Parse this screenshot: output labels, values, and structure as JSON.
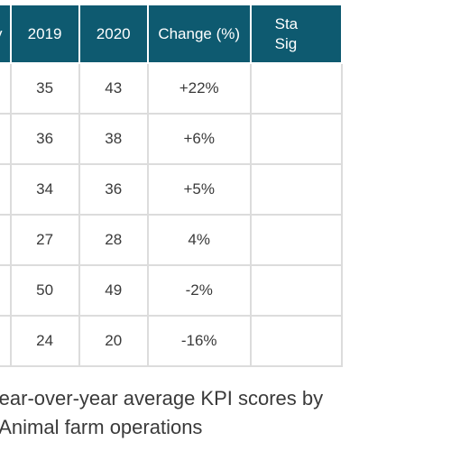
{
  "table": {
    "headers": {
      "label": "y",
      "year_2019": "2019",
      "year_2020": "2020",
      "change": "Change (%)",
      "significance_line1": "Sta",
      "significance_line2": "Sig"
    },
    "rows": [
      {
        "v2019": "35",
        "v2020": "43",
        "change": "+22%"
      },
      {
        "v2019": "36",
        "v2020": "38",
        "change": "+6%"
      },
      {
        "v2019": "34",
        "v2020": "36",
        "change": "+5%"
      },
      {
        "v2019": "27",
        "v2020": "28",
        "change": "4%"
      },
      {
        "v2019": "50",
        "v2020": "49",
        "change": "-2%"
      },
      {
        "v2019": "24",
        "v2020": "20",
        "change": "-16%"
      }
    ]
  },
  "caption": {
    "line1": "Year-over-year average KPI scores by",
    "line2": "- Animal farm operations"
  }
}
